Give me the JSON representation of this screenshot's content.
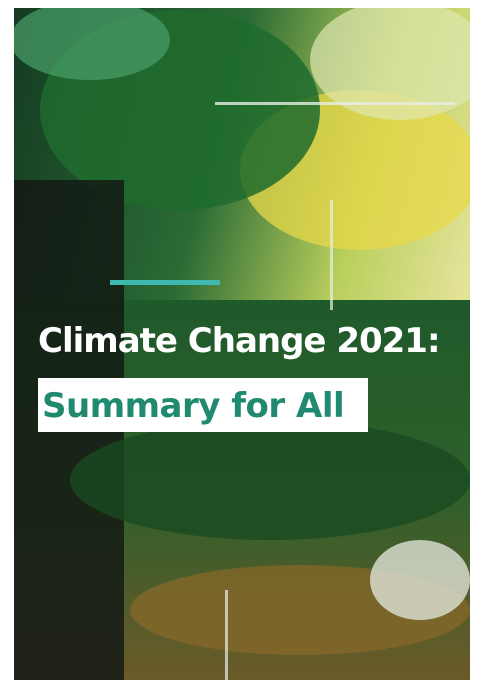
{
  "cover": {
    "title_line1": "Climate Change 2021:",
    "title_line2": "Summary for All"
  }
}
